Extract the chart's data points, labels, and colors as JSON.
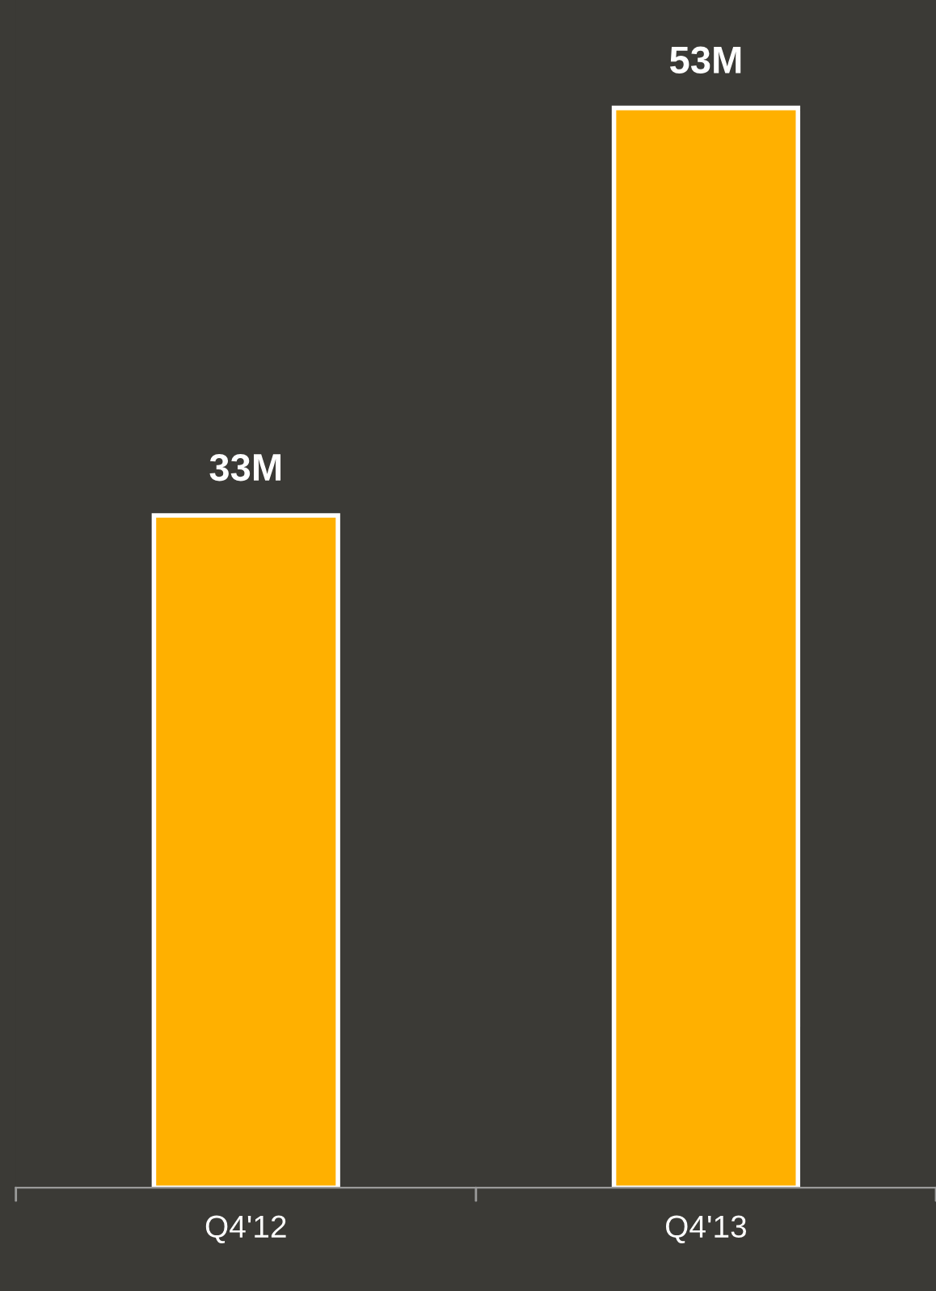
{
  "chart_data": {
    "type": "bar",
    "categories": [
      "Q4'12",
      "Q4'13"
    ],
    "values": [
      33,
      53
    ],
    "value_labels": [
      "33M",
      "53M"
    ],
    "color": "#ffb000",
    "grid": false,
    "legend": false
  }
}
